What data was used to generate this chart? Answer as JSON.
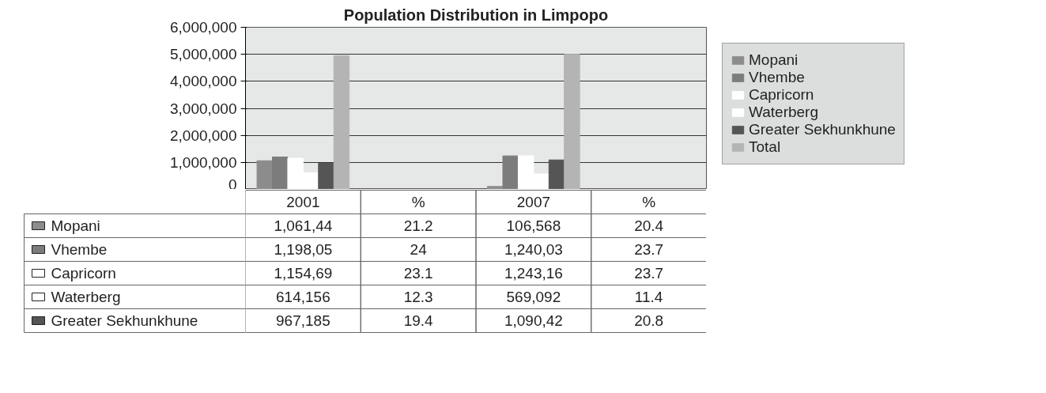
{
  "chart_data": {
    "type": "bar",
    "title": "Population Distribution in Limpopo",
    "categories": [
      "2001",
      "%",
      "2007",
      "%"
    ],
    "series": [
      {
        "name": "Mopani",
        "color": "#8c8c8c",
        "values": [
          1061440,
          21.2,
          106568,
          20.4
        ],
        "value_labels": [
          "1,061,44",
          "21.2",
          "106,568",
          "20.4"
        ]
      },
      {
        "name": "Vhembe",
        "color": "#7c7c7c",
        "values": [
          1198050,
          24,
          1240030,
          23.7
        ],
        "value_labels": [
          "1,198,05",
          "24",
          "1,240,03",
          "23.7"
        ]
      },
      {
        "name": "Capricorn",
        "color": "#ffffff",
        "values": [
          1154690,
          23.1,
          1243160,
          23.7
        ],
        "value_labels": [
          "1,154,69",
          "23.1",
          "1,243,16",
          "23.7"
        ]
      },
      {
        "name": "Waterberg",
        "color": "#ffffff",
        "values": [
          614156,
          12.3,
          569092,
          11.4
        ],
        "value_labels": [
          "614,156",
          "12.3",
          "569,092",
          "11.4"
        ]
      },
      {
        "name": "Greater Sekhunkhune",
        "color": "#555555",
        "values": [
          967185,
          19.4,
          1090420,
          20.8
        ],
        "value_labels": [
          "967,185",
          "19.4",
          "1,090,42",
          "20.8"
        ]
      },
      {
        "name": "Total",
        "color": "#b4b4b4",
        "values": [
          4950000,
          null,
          5000000,
          null
        ]
      }
    ],
    "ylim": [
      0,
      6000000
    ],
    "yticks": [
      {
        "value": 0,
        "label": "0"
      },
      {
        "value": 1000000,
        "label": "1,000,000"
      },
      {
        "value": 2000000,
        "label": "2,000,000"
      },
      {
        "value": 3000000,
        "label": "3,000,000"
      },
      {
        "value": 4000000,
        "label": "4,000,000"
      },
      {
        "value": 5000000,
        "label": "5,000,000"
      },
      {
        "value": 6000000,
        "label": "6,000,000"
      }
    ],
    "grid": "y",
    "legend": "right"
  }
}
